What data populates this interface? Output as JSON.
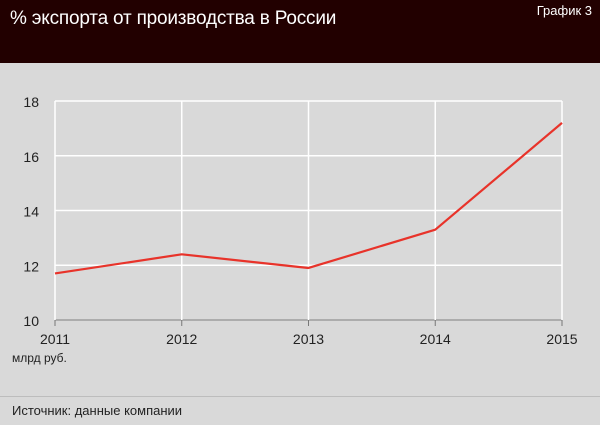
{
  "header": {
    "title": "% экспорта от производства в России",
    "graph_label": "График 3"
  },
  "footer": {
    "source": "Источник: данные компании"
  },
  "colors": {
    "header_bg": "#220000",
    "plot_bg": "#d9d9d9",
    "line": "#e8332a",
    "grid": "#ffffff"
  },
  "chart_data": {
    "type": "line",
    "title": "% экспорта от производства в России",
    "x": [
      "2011",
      "2012",
      "2013",
      "2014",
      "2015"
    ],
    "series": [
      {
        "values": [
          11.7,
          12.4,
          11.9,
          13.3,
          17.2
        ]
      }
    ],
    "ylim": [
      10,
      18
    ],
    "yticks": [
      10,
      12,
      14,
      16,
      18
    ],
    "xunit_note": "млрд руб.",
    "grid": true
  }
}
